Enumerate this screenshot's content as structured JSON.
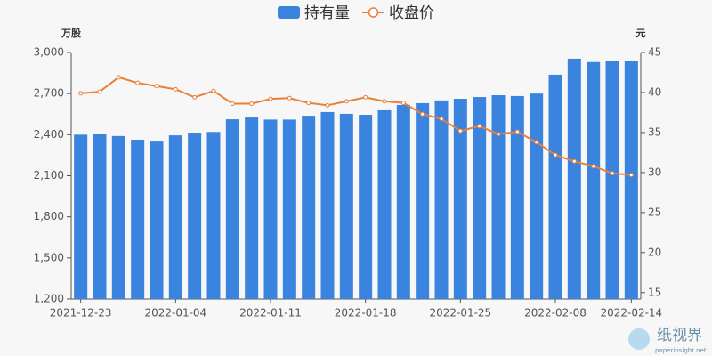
{
  "chart_data": {
    "type": "bar_line",
    "legend": [
      "持有量",
      "收盘价"
    ],
    "y_axis_label": "万股",
    "y2_axis_label": "元",
    "categories": [
      "2021-12-23",
      null,
      null,
      null,
      null,
      "2022-01-04",
      null,
      null,
      null,
      null,
      "2022-01-11",
      null,
      null,
      null,
      null,
      "2022-01-18",
      null,
      null,
      null,
      null,
      "2022-01-25",
      null,
      null,
      null,
      null,
      "2022-02-08",
      null,
      null,
      null,
      "2022-02-14"
    ],
    "series": [
      {
        "name": "持有量",
        "type": "bar",
        "color": "#3a84e0",
        "values": [
          2400,
          2405,
          2390,
          2363,
          2356,
          2395,
          2415,
          2420,
          2512,
          2525,
          2510,
          2510,
          2538,
          2565,
          2552,
          2545,
          2578,
          2617,
          2630,
          2650,
          2662,
          2675,
          2688,
          2682,
          2700,
          2838,
          2955,
          2930,
          2935,
          2940
        ]
      },
      {
        "name": "收盘价",
        "type": "line",
        "axis": "y2",
        "color": "#e8803a",
        "values": [
          39.9,
          40.1,
          41.9,
          41.2,
          40.8,
          40.4,
          39.4,
          40.2,
          38.6,
          38.6,
          39.2,
          39.3,
          38.7,
          38.4,
          38.9,
          39.4,
          38.9,
          38.7,
          37.3,
          36.7,
          35.2,
          35.8,
          34.8,
          35.1,
          33.8,
          32.2,
          31.4,
          30.8,
          29.9,
          29.7
        ]
      }
    ],
    "ylim": [
      1200,
      3000
    ],
    "yticks": [
      {
        "value": 1200,
        "label": "1,200"
      },
      {
        "value": 1500,
        "label": "1,500"
      },
      {
        "value": 1800,
        "label": "1,800"
      },
      {
        "value": 2100,
        "label": "2,100"
      },
      {
        "value": 2400,
        "label": "2,400"
      },
      {
        "value": 2700,
        "label": "2,700"
      },
      {
        "value": 3000,
        "label": "3,000"
      }
    ],
    "y2lim": [
      14.2,
      45
    ],
    "y2ticks": [
      15,
      20,
      25,
      30,
      35,
      40,
      45
    ],
    "watermark": [
      "纸视界",
      "paperinsight.net"
    ]
  }
}
